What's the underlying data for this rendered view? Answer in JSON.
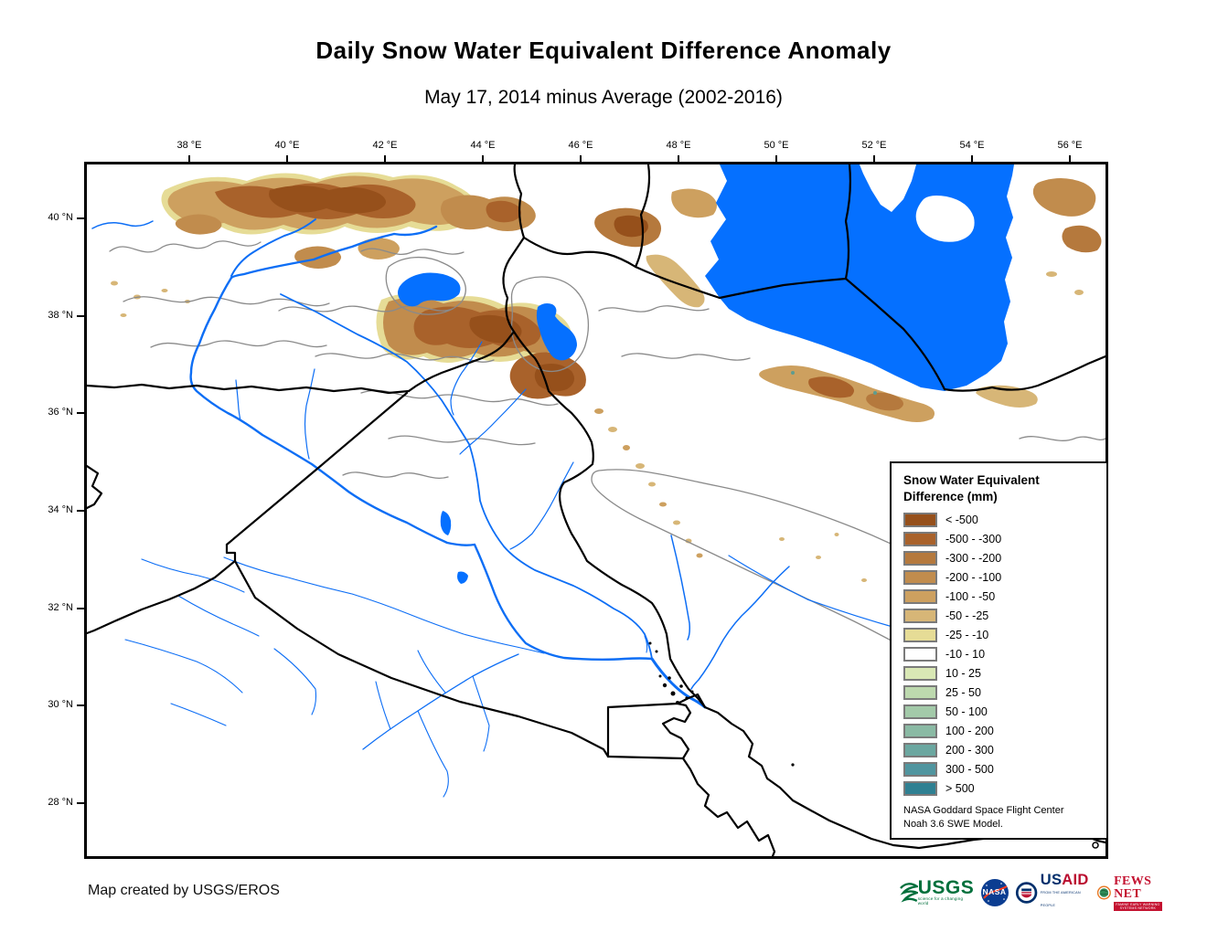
{
  "title": "Daily Snow Water Equivalent Difference Anomaly",
  "subtitle": "May 17, 2014 minus Average (2002-2016)",
  "map": {
    "lon_labels": [
      "38 °E",
      "40 °E",
      "42 °E",
      "44 °E",
      "46 °E",
      "48 °E",
      "50 °E",
      "52 °E",
      "54 °E",
      "56 °E"
    ],
    "lat_labels": [
      "40 °N",
      "38 °N",
      "36 °N",
      "34 °N",
      "32 °N",
      "30 °N",
      "28 °N"
    ],
    "water_color": "#0570FF",
    "river_color": "#0D6EF5",
    "border_color": "#000000",
    "basin_color": "#8A8A8A"
  },
  "legend": {
    "title_line1": "Snow Water Equivalent",
    "title_line2": "Difference (mm)",
    "entries": [
      {
        "label": "< -500",
        "color": "#96501B"
      },
      {
        "label": "-500 - -300",
        "color": "#A9622B"
      },
      {
        "label": "-300 - -200",
        "color": "#B5793D"
      },
      {
        "label": "-200 - -100",
        "color": "#C18C4D"
      },
      {
        "label": "-100 - -50",
        "color": "#CDA05F"
      },
      {
        "label": "-50 - -25",
        "color": "#D7B677"
      },
      {
        "label": "-25 - -10",
        "color": "#E6DC96"
      },
      {
        "label": "-10 - 10",
        "color": "#FFFFFF"
      },
      {
        "label": "10 - 25",
        "color": "#D9E8B5"
      },
      {
        "label": "25 - 50",
        "color": "#BDD9AE"
      },
      {
        "label": "50 - 100",
        "color": "#A3CAA9"
      },
      {
        "label": "100 - 200",
        "color": "#8ABAA4"
      },
      {
        "label": "200 - 300",
        "color": "#6BA7A0"
      },
      {
        "label": "300 - 500",
        "color": "#50959F"
      },
      {
        "label": "> 500",
        "color": "#2F8092"
      }
    ],
    "source_line1": "NASA Goddard Space Flight Center",
    "source_line2": "Noah 3.6 SWE Model."
  },
  "footer": {
    "credit": "Map created by USGS/EROS"
  },
  "logos": {
    "usgs": {
      "name": "USGS",
      "tagline": "science for a changing world"
    },
    "nasa": {
      "name": "NASA"
    },
    "usaid": {
      "us": "US",
      "aid": "AID",
      "tagline": "FROM THE AMERICAN PEOPLE"
    },
    "fewsnet": {
      "name": "FEWS NET",
      "tagline": "FAMINE EARLY WARNING SYSTEMS NETWORK"
    }
  }
}
